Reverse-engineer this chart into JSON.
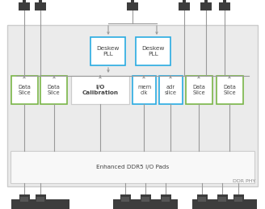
{
  "bg": "#ffffff",
  "phy_fc": "#ebebeb",
  "phy_ec": "#cccccc",
  "pads_fc": "#f8f8f8",
  "pads_ec": "#cccccc",
  "blue_ec": "#29abe2",
  "green_ec": "#7ab648",
  "white_fc": "#ffffff",
  "arrow_c": "#999999",
  "dark_c": "#3d3d3d",
  "dark2_c": "#555555",
  "text_c": "#444444",
  "ddr_phy_label": "DDR PHY",
  "enhanced_label": "Enhanced DDR5 I/O Pads",
  "deskew_label": "Deskew\nPLL",
  "io_cal_label": "I/O\nCalibration",
  "mem_clk_label": "mem\nclk",
  "adr_slice_label": "adr\nslice",
  "data_slice_label": "Data\nSlice",
  "figw": 3.28,
  "figh": 2.59,
  "dpi": 100
}
